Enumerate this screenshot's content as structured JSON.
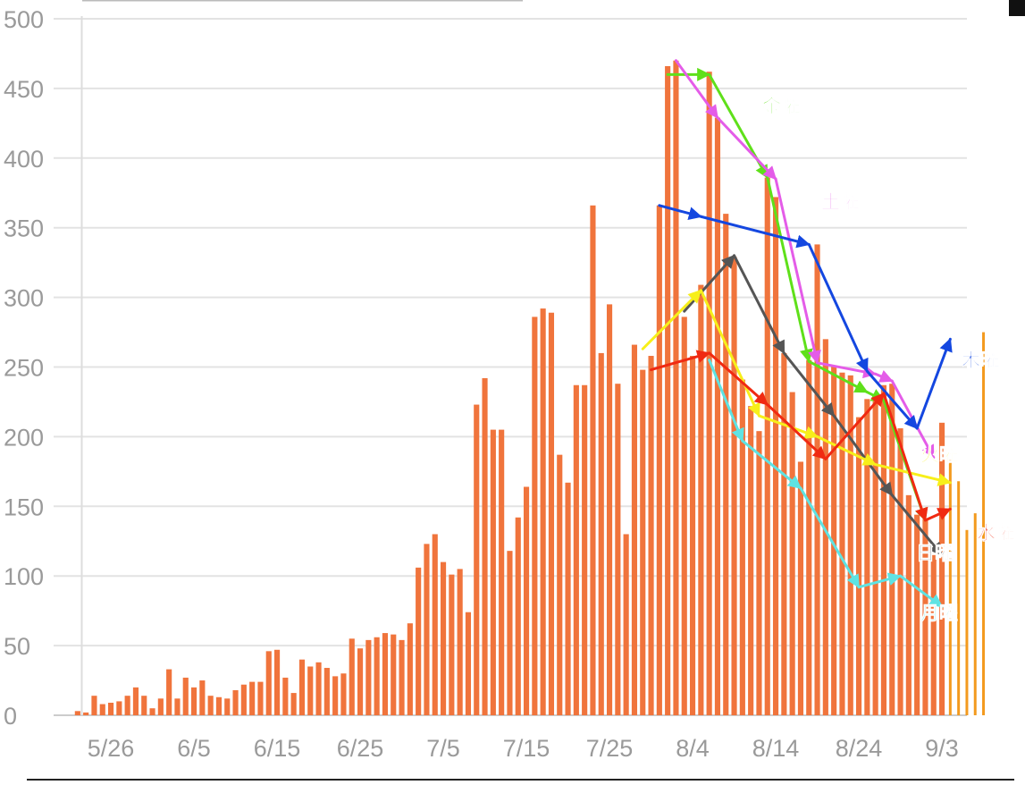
{
  "chart_data": {
    "type": "bar",
    "ylim": [
      0,
      500
    ],
    "y_ticks": [
      "0",
      "50",
      "100",
      "150",
      "200",
      "250",
      "300",
      "350",
      "400",
      "450",
      "500"
    ],
    "x_tick_labels": [
      "5/26",
      "6/5",
      "6/15",
      "6/25",
      "7/5",
      "7/15",
      "7/25",
      "8/4",
      "8/14",
      "8/24",
      "9/3"
    ],
    "x_tick_positions": [
      4,
      14,
      24,
      34,
      44,
      54,
      64,
      74,
      84,
      94,
      104
    ],
    "grid": true,
    "bar_color": "#f0743c",
    "forecast_color": "#f39a1e",
    "values": [
      3,
      2,
      14,
      8,
      9,
      10,
      14,
      20,
      14,
      5,
      12,
      33,
      12,
      27,
      20,
      25,
      14,
      13,
      12,
      18,
      22,
      24,
      24,
      46,
      47,
      27,
      16,
      40,
      35,
      38,
      34,
      28,
      30,
      55,
      48,
      54,
      56,
      59,
      58,
      54,
      66,
      106,
      123,
      130,
      110,
      101,
      105,
      74,
      223,
      242,
      205,
      205,
      118,
      142,
      164,
      286,
      292,
      289,
      187,
      167,
      237,
      237,
      366,
      260,
      295,
      238,
      130,
      266,
      248,
      258,
      366,
      466,
      470,
      286,
      258,
      309,
      462,
      429,
      360,
      329,
      241,
      222,
      204,
      386,
      372,
      260,
      232,
      182,
      255,
      338,
      270,
      251,
      246,
      244,
      214,
      227,
      227,
      237,
      238,
      206,
      158,
      144,
      141,
      115,
      210
    ],
    "forecast_values": [
      185,
      168,
      133,
      145,
      275
    ],
    "weekday_series": [
      {
        "name": "金曜",
        "color": "#5fe01a",
        "points": [
          [
            71,
            460
          ],
          [
            76,
            460
          ],
          [
            83,
            386
          ],
          [
            88,
            254
          ],
          [
            95,
            232
          ],
          [
            97,
            226
          ],
          [
            102,
            140
          ]
        ]
      },
      {
        "name": "土曜",
        "color": "#e45ce8",
        "points": [
          [
            72,
            470
          ],
          [
            77,
            429
          ],
          [
            84,
            385
          ],
          [
            89,
            253
          ],
          [
            96,
            245
          ],
          [
            98,
            240
          ],
          [
            103,
            185
          ]
        ]
      },
      {
        "name": "木曜",
        "color": "#1447e0",
        "points": [
          [
            70,
            366
          ],
          [
            75,
            358
          ],
          [
            88,
            338
          ],
          [
            95,
            247
          ],
          [
            101,
            206
          ],
          [
            105,
            270
          ]
        ]
      },
      {
        "name": "日曜",
        "color": "#555555",
        "points": [
          [
            73,
            290
          ],
          [
            79,
            330
          ],
          [
            85,
            260
          ],
          [
            91,
            215
          ],
          [
            98,
            158
          ],
          [
            104,
            115
          ]
        ]
      },
      {
        "name": "火曜",
        "color": "#f7ef1a",
        "points": [
          [
            68,
            263
          ],
          [
            75,
            305
          ],
          [
            82,
            215
          ],
          [
            89,
            200
          ],
          [
            96,
            180
          ],
          [
            105,
            167
          ]
        ]
      },
      {
        "name": "水曜",
        "color": "#f02a12",
        "points": [
          [
            69,
            248
          ],
          [
            76,
            260
          ],
          [
            83,
            223
          ],
          [
            90,
            184
          ],
          [
            97,
            231
          ],
          [
            102,
            140
          ],
          [
            105,
            148
          ]
        ]
      },
      {
        "name": "月曜",
        "color": "#5ee3e3",
        "points": [
          [
            76,
            255
          ],
          [
            80,
            197
          ],
          [
            87,
            163
          ],
          [
            94,
            92
          ],
          [
            99,
            100
          ],
          [
            104,
            78
          ]
        ]
      }
    ]
  },
  "labels": [
    {
      "text": "金曜",
      "color": "#5fe01a"
    },
    {
      "text": "土曜",
      "color": "#e45ce8"
    },
    {
      "text": "木曜",
      "color": "#1447e0"
    },
    {
      "text": "火曜",
      "color": "#f7ef1a"
    },
    {
      "text": "水曜",
      "color": "#f02a12"
    },
    {
      "text": "日曜",
      "color": "#555555"
    },
    {
      "text": "月曜",
      "color": "#5ee3e3"
    }
  ]
}
